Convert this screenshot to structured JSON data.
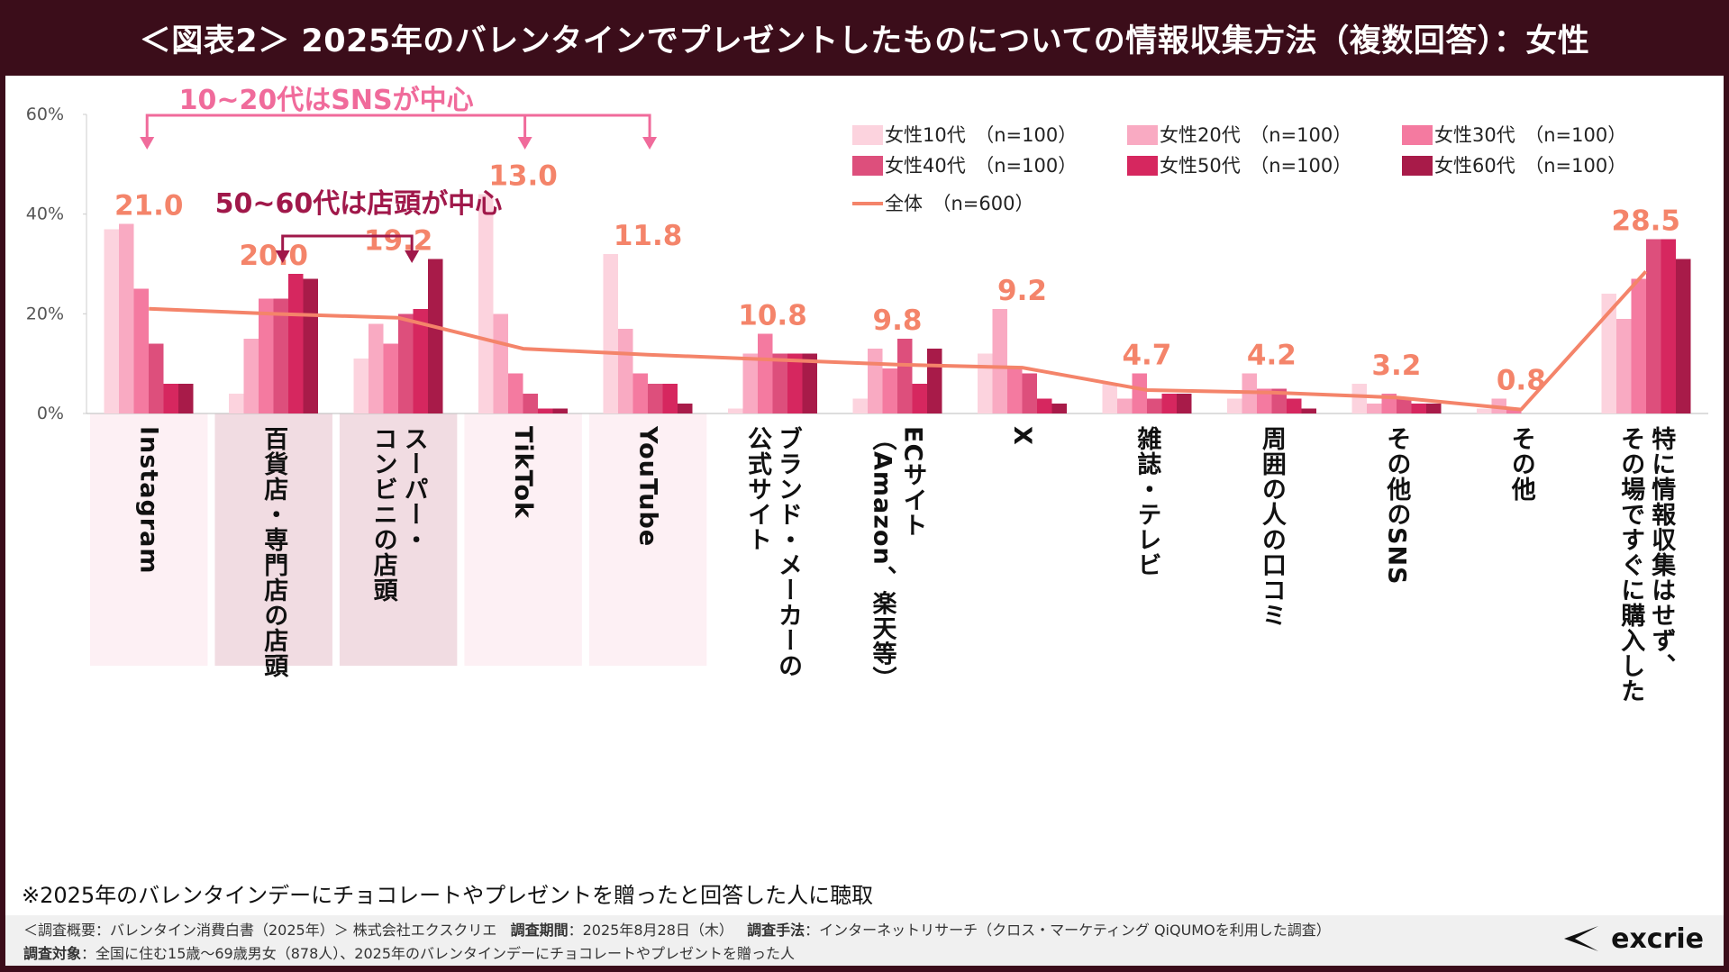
{
  "title": "＜図表2＞ 2025年のバレンタインでプレゼントしたものについての情報収集方法（複数回答）：女性",
  "note": "※2025年のバレンタインデーにチョコレートやプレゼントを贈ったと回答した人に聴取",
  "footer": {
    "survey_label": "＜調査概要：バレンタイン消費白書（2025年）＞ 株式会社エクスクリエ",
    "period_label": "調査期間",
    "period_value": "：2025年8月28日（木）",
    "method_label": "調査手法",
    "method_value": "：インターネットリサーチ（クロス・マーケティング QiQUMOを利用した調査）",
    "target_label": "調査対象",
    "target_value": "：全国に住む15歳～69歳男女（878人）、2025年のバレンタインデーにチョコレートやプレゼントを贈った人"
  },
  "logo": {
    "text": "excrie",
    "icon": "excrie-logo-mark"
  },
  "annotations": {
    "sns_label": "10~20代はSNSが中心",
    "store_label": "50~60代は店頭が中心",
    "sns_color": "#f06b9b",
    "store_color": "#a0184a"
  },
  "chart_data": {
    "type": "bar",
    "categories": [
      "Instagram",
      "百貨店・専門店の店頭",
      "スーパー・コンビニの店頭",
      "TikTok",
      "YouTube",
      "ブランド・メーカーの公式サイト",
      "ECサイト（Amazon、楽天等）",
      "X",
      "雑誌・テレビ",
      "周囲の人の口コミ",
      "その他のSNS",
      "その他",
      "特に情報収集はせず、その場ですぐに購入した"
    ],
    "category_lines": [
      [
        "Instagram"
      ],
      [
        "百貨店・専門店の店頭"
      ],
      [
        "スーパー・",
        "コンビニの店頭"
      ],
      [
        "TikTok"
      ],
      [
        "YouTube"
      ],
      [
        "ブランド・メーカーの",
        "公式サイト"
      ],
      [
        "ECサイト",
        "（Amazon、楽天等）"
      ],
      [
        "X"
      ],
      [
        "雑誌・テレビ"
      ],
      [
        "周囲の人の口コミ"
      ],
      [
        "その他のSNS"
      ],
      [
        "その他"
      ],
      [
        "特に情報収集はせず、",
        "その場ですぐに購入した"
      ]
    ],
    "series": [
      {
        "name": "女性10代　（n=100）",
        "color": "#fcd3de",
        "values": [
          37,
          4,
          11,
          44,
          32,
          1,
          3,
          12,
          6,
          3,
          6,
          1,
          24
        ]
      },
      {
        "name": "女性20代　（n=100）",
        "color": "#f9aac2",
        "values": [
          38,
          15,
          18,
          20,
          17,
          12,
          13,
          21,
          3,
          8,
          2,
          3,
          19
        ]
      },
      {
        "name": "女性30代　（n=100）",
        "color": "#f47aa0",
        "values": [
          25,
          23,
          14,
          8,
          8,
          16,
          9,
          9,
          8,
          5,
          4,
          1,
          27
        ]
      },
      {
        "name": "女性40代　（n=100）",
        "color": "#dd4f7c",
        "values": [
          14,
          23,
          20,
          4,
          6,
          12,
          15,
          8,
          3,
          5,
          3,
          0,
          35
        ]
      },
      {
        "name": "女性50代　（n=100）",
        "color": "#d6275f",
        "values": [
          6,
          28,
          21,
          1,
          6,
          12,
          6,
          3,
          4,
          3,
          2,
          0,
          35
        ]
      },
      {
        "name": "女性60代　（n=100）",
        "color": "#a81b49",
        "values": [
          6,
          27,
          31,
          1,
          2,
          12,
          13,
          2,
          4,
          1,
          2,
          0,
          31
        ]
      }
    ],
    "total": {
      "name": "全体　（n=600）",
      "color": "#f4846a",
      "values": [
        21.0,
        20.0,
        19.2,
        13.0,
        11.8,
        10.8,
        9.8,
        9.2,
        4.7,
        4.2,
        3.2,
        0.8,
        28.5
      ],
      "labels": [
        "21.0",
        "20.0",
        "19.2",
        "13.0",
        "11.8",
        "10.8",
        "9.8",
        "9.2",
        "4.7",
        "4.2",
        "3.2",
        "0.8",
        "28.5"
      ]
    },
    "y_ticks": [
      "0%",
      "20%",
      "40%",
      "60%"
    ],
    "ylim": [
      0,
      60
    ],
    "legend_placement": "top-right",
    "highlight_sns_categories": [
      "Instagram",
      "TikTok",
      "YouTube"
    ],
    "highlight_store_categories": [
      "百貨店・専門店の店頭",
      "スーパー・コンビニの店頭"
    ],
    "sns_highlight_color": "#fdf0f4",
    "store_highlight_color": "#f1dce2"
  }
}
